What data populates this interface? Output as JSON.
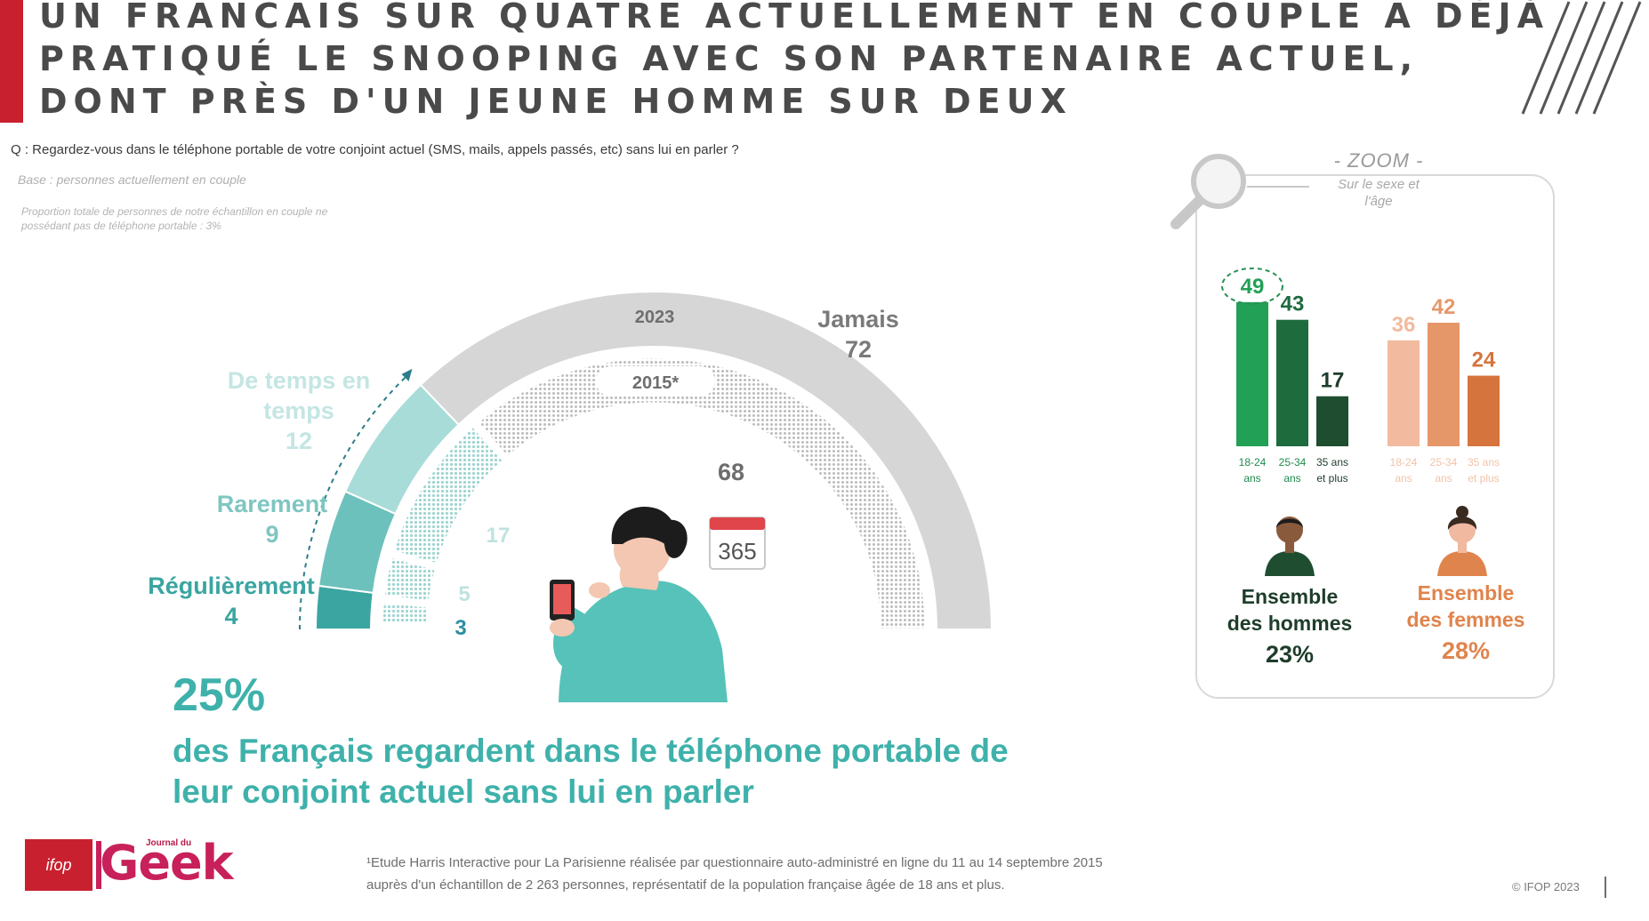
{
  "header": {
    "title_lines": [
      "UN FRANCAIS SUR QUATRE ACTUELLEMENT EN COUPLE A DÉJÀ",
      "PRATIQUÉ LE SNOOPING AVEC SON PARTENAIRE ACTUEL,",
      "DONT PRÈS D'UN JEUNE HOMME SUR DEUX"
    ]
  },
  "question": "Q : Regardez-vous dans le téléphone portable de votre conjoint actuel (SMS, mails, appels passés, etc) sans lui en parler ?",
  "base": "Base : personnes actuellement en couple",
  "proportion_note": "Proportion totale de personnes de notre échantillon en couple ne possédant pas de téléphone portable : 3%",
  "headline": {
    "pct": "25%",
    "text_lines": [
      "des Français regardent dans le téléphone portable de",
      "leur conjoint actuel sans lui en parler"
    ]
  },
  "calendar_label": "365",
  "zoom": {
    "title": "- ZOOM -",
    "subtitle_lines": [
      "Sur le sexe et",
      "l'âge"
    ],
    "men": {
      "l1": "Ensemble",
      "l2": "des hommes",
      "pct": "23%"
    },
    "women": {
      "l1": "Ensemble",
      "l2": "des femmes",
      "pct": "28%"
    }
  },
  "footer": {
    "note_lines": [
      "¹Etude Harris Interactive pour La Parisienne réalisée par questionnaire auto-administré en ligne du 11 au 14 septembre 2015",
      "auprès d'un échantillon de 2 263 personnes, représentatif de la population française âgée de 18 ans et plus."
    ],
    "copyright": "© IFOP 2023",
    "logo_ifop": "ifop",
    "logo_small": "Journal du",
    "logo_geek": "Geek"
  },
  "colors": {
    "regulierement": "#3aa5a1",
    "rarement": "#6cc1bc",
    "de_temps": "#a8dcd8",
    "jamais_2023": "#d6d6d6",
    "jamais_2015": "#cfcfcf",
    "men_dark": "#1e4d30",
    "men_mid": "#1e6b3e",
    "men_light": "#22a056",
    "women_dark": "#d6743d",
    "women_mid": "#e6976a",
    "women_light": "#f2bba0",
    "title_red": "#c8202f"
  },
  "chart_data": [
    {
      "type": "pie",
      "subtype": "half-donut",
      "title": "",
      "categories": [
        "Régulièrement",
        "Rarement",
        "De temps en temps",
        "Jamais"
      ],
      "series": [
        {
          "name": "2023",
          "values": [
            4,
            9,
            12,
            72
          ]
        },
        {
          "name": "2015*",
          "values": [
            3,
            5,
            17,
            68
          ]
        }
      ],
      "category_labels": {
        "regulierement": "Régulièrement",
        "rarement": "Rarement",
        "de_temps": "De temps en temps",
        "jamais": "Jamais"
      },
      "labels_2023": {
        "regulierement": "4",
        "rarement": "9",
        "de_temps": "12",
        "jamais": "72"
      },
      "labels_2015": {
        "regulierement": "3",
        "rarement": "5",
        "de_temps": "17",
        "jamais": "68"
      },
      "series_labels": {
        "outer": "2023",
        "inner": "2015*"
      }
    },
    {
      "type": "bar",
      "title": "",
      "groups": [
        {
          "name": "Ensemble des hommes",
          "categories": [
            [
              "18-24",
              "ans"
            ],
            [
              "25-34",
              "ans"
            ],
            [
              "35 ans",
              "et plus"
            ]
          ],
          "values": [
            49,
            43,
            17
          ]
        },
        {
          "name": "Ensemble des femmes",
          "categories": [
            [
              "18-24",
              "ans"
            ],
            [
              "25-34",
              "ans"
            ],
            [
              "35 ans",
              "et plus"
            ]
          ],
          "values": [
            36,
            42,
            24
          ]
        }
      ],
      "ylim": [
        0,
        55
      ],
      "highlight": "18-24 ans hommes (49)"
    }
  ]
}
